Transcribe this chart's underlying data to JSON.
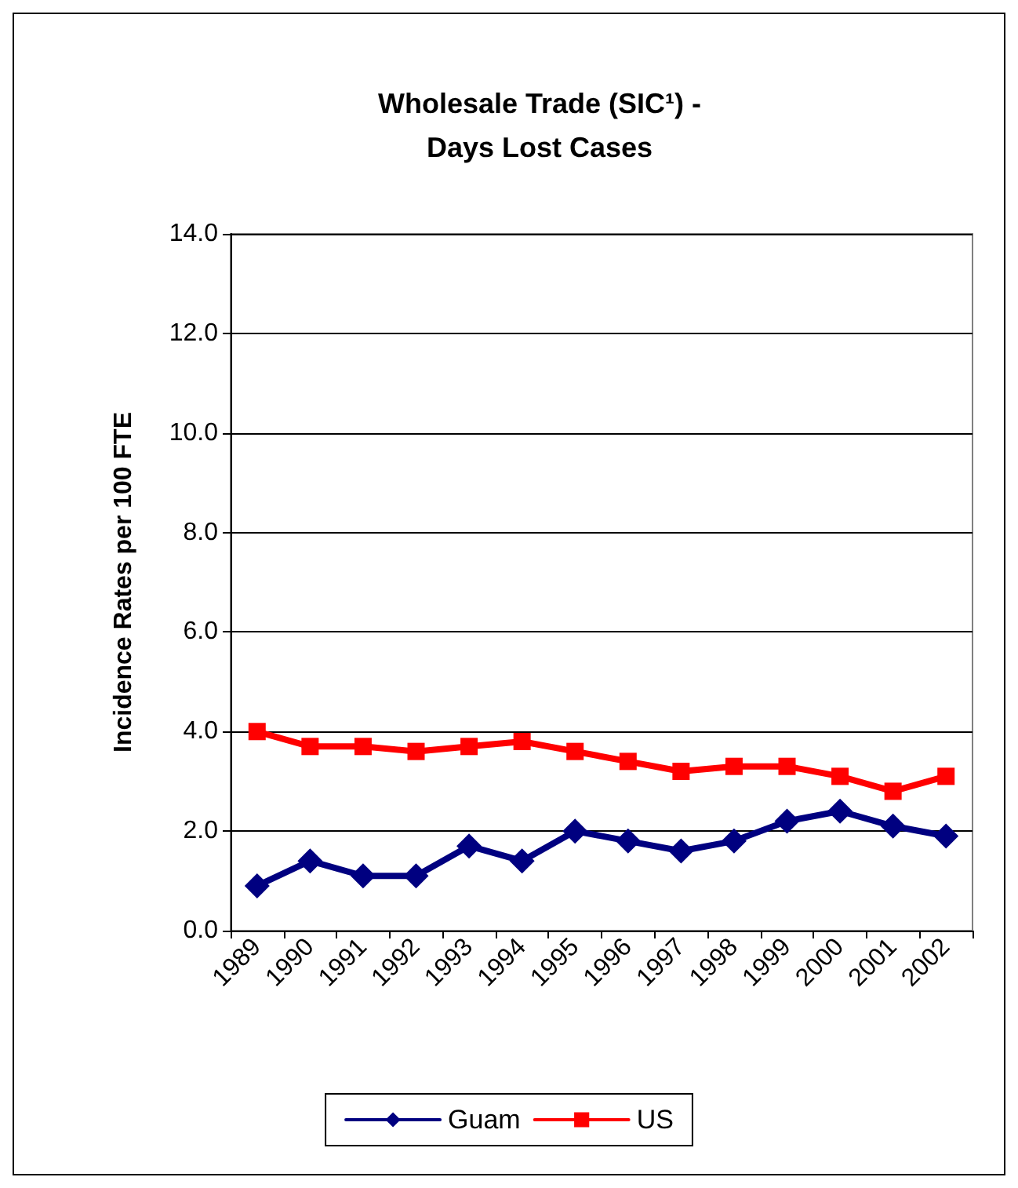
{
  "chart_data": {
    "type": "line",
    "title": "Wholesale Trade (SIC¹) -\nDays Lost Cases",
    "ylabel": "Incidence Rates per 100 FTE",
    "categories": [
      "1989",
      "1990",
      "1991",
      "1992",
      "1993",
      "1994",
      "1995",
      "1996",
      "1997",
      "1998",
      "1999",
      "2000",
      "2001",
      "2002"
    ],
    "series": [
      {
        "name": "Guam",
        "color": "#000080",
        "marker": "diamond",
        "values": [
          0.9,
          1.4,
          1.1,
          1.1,
          1.7,
          1.4,
          2.0,
          1.8,
          1.6,
          1.8,
          2.2,
          2.4,
          2.1,
          1.9
        ]
      },
      {
        "name": "US",
        "color": "#ff0000",
        "marker": "square",
        "values": [
          4.0,
          3.7,
          3.7,
          3.6,
          3.7,
          3.8,
          3.6,
          3.4,
          3.2,
          3.3,
          3.3,
          3.1,
          2.8,
          3.1
        ]
      }
    ],
    "ylim": [
      0,
      14
    ],
    "yticks": [
      {
        "value": 0,
        "label": "0.0"
      },
      {
        "value": 2,
        "label": "2.0"
      },
      {
        "value": 4,
        "label": "4.0"
      },
      {
        "value": 6,
        "label": "6.0"
      },
      {
        "value": 8,
        "label": "8.0"
      },
      {
        "value": 10,
        "label": "10.0"
      },
      {
        "value": 12,
        "label": "12.0"
      },
      {
        "value": 14,
        "label": "14.0"
      }
    ],
    "grid": "y",
    "legend": "bottom",
    "line_style": "solid"
  }
}
